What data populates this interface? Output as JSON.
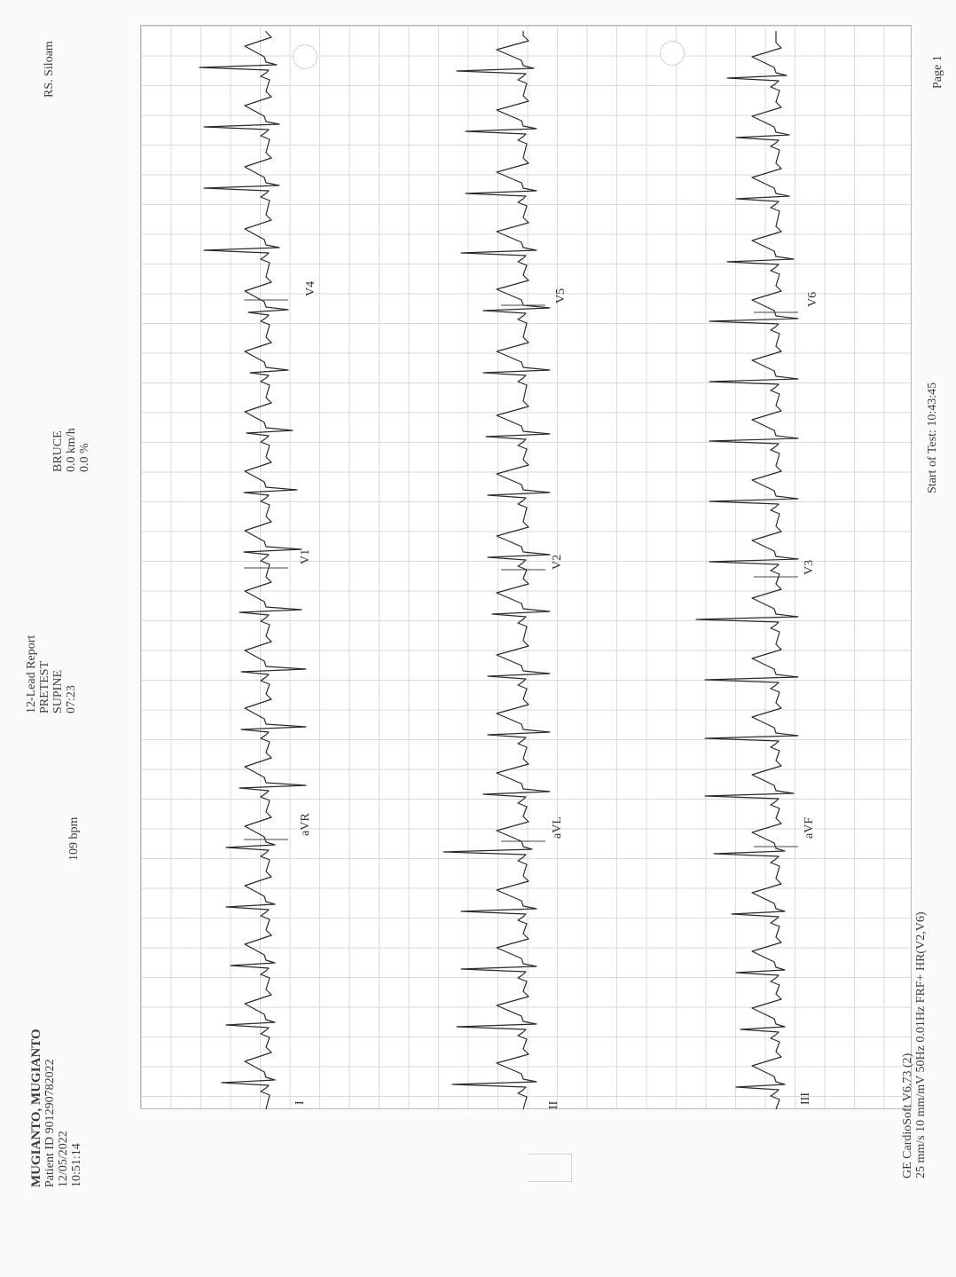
{
  "header": {
    "patient_name": "MUGIANTO, MUGIANTO",
    "patient_id": "Patient ID  901290782022",
    "date": "12/05/2022",
    "time": "10:51:14",
    "heart_rate": "109 bpm",
    "report_title": "12-Lead Report",
    "phase": "PRETEST",
    "position": "SUPINE",
    "elapsed": "07:23",
    "protocol": "BRUCE",
    "speed": "0.0 km/h",
    "grade": "0.0 %",
    "hospital": "RS. Siloam"
  },
  "leads": [
    "I",
    "aVR",
    "V1",
    "V4",
    "II",
    "aVL",
    "V2",
    "V5",
    "III",
    "aVF",
    "V3",
    "V6"
  ],
  "footer": {
    "software": "GE CardioSoft V6.73 (2)",
    "settings": "25 mm/s  10 mm/mV  50Hz  0.01Hz  FRF+  HR(V2,V6)",
    "start_of_test": "Start of Test: 10:43:45",
    "page": "Page 1"
  }
}
